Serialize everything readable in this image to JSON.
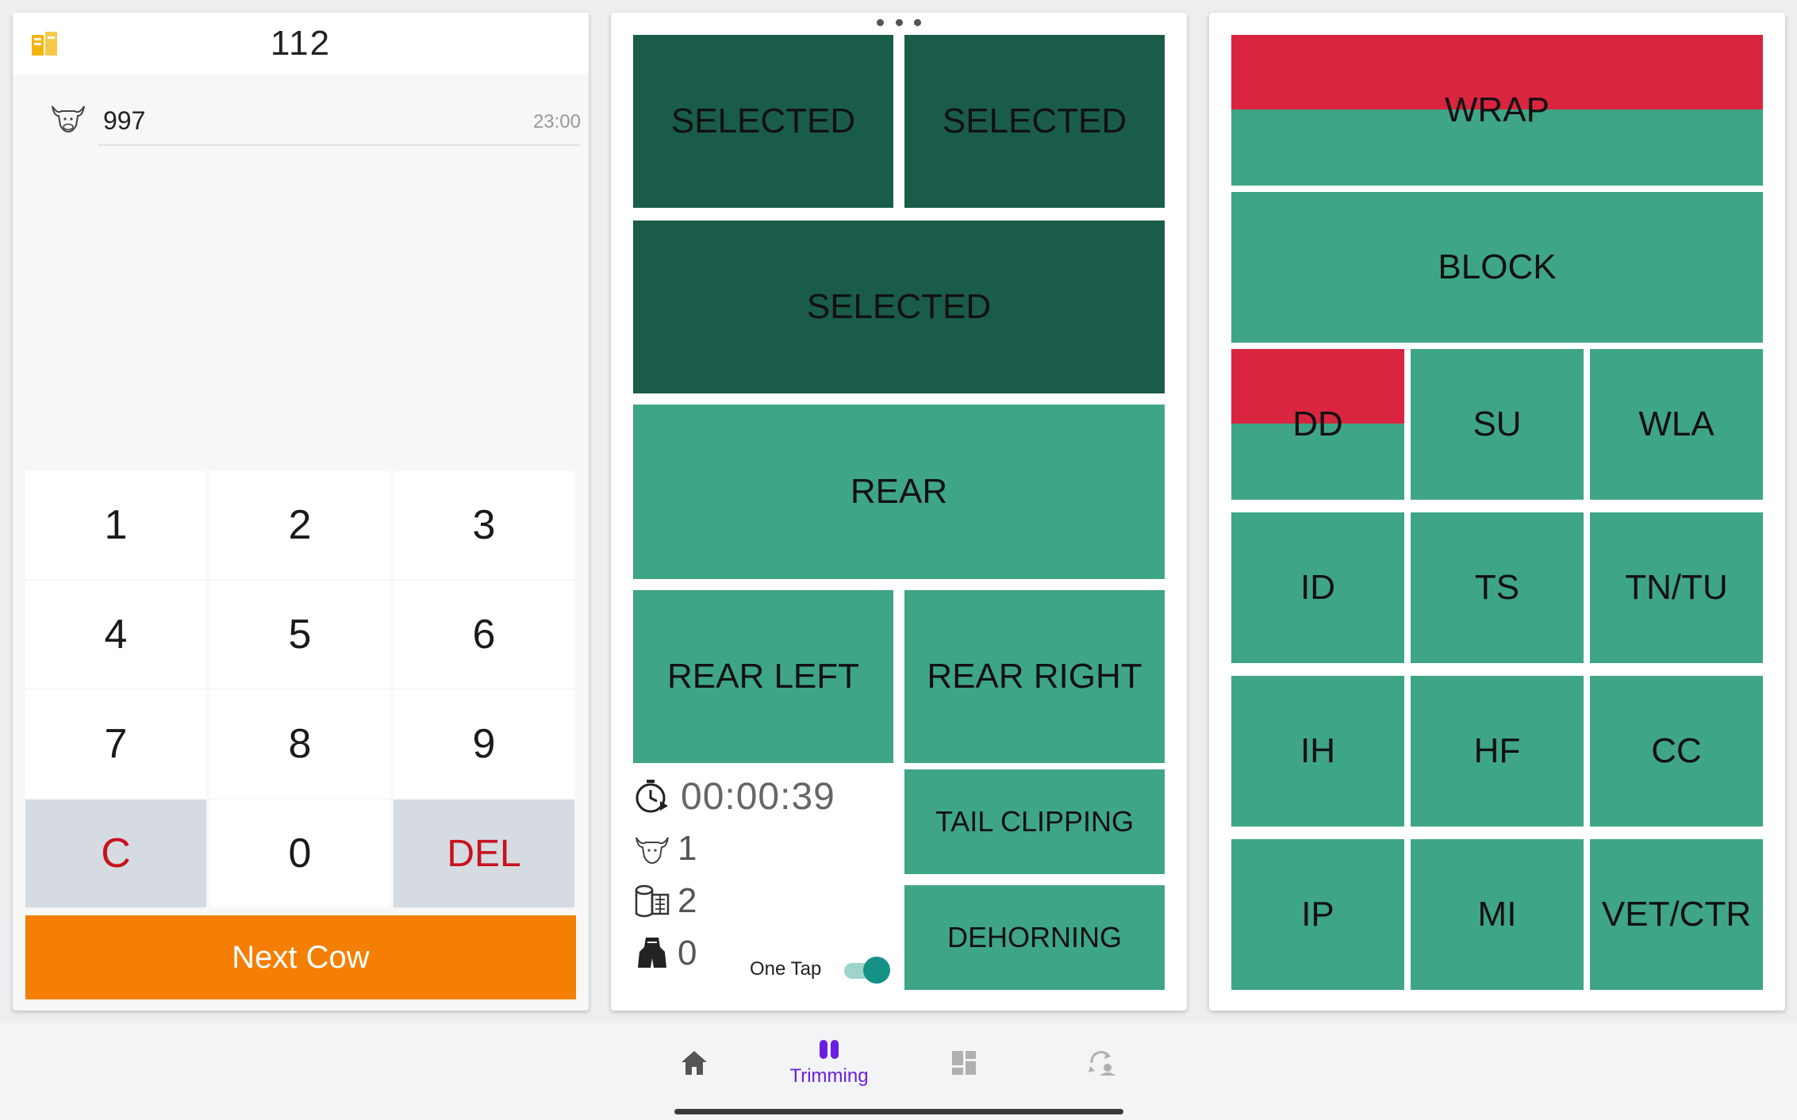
{
  "left_panel": {
    "header_number": "112",
    "cow": {
      "id": "997",
      "time": "23:00"
    },
    "keypad": {
      "keys": [
        "1",
        "2",
        "3",
        "4",
        "5",
        "6",
        "7",
        "8",
        "9"
      ],
      "clear": "C",
      "zero": "0",
      "delete": "DEL"
    },
    "next_cow": "Next Cow"
  },
  "middle_panel": {
    "selected_1": "SELECTED",
    "selected_2": "SELECTED",
    "selected_3": "SELECTED",
    "rear": "REAR",
    "rear_left": "REAR LEFT",
    "rear_right": "REAR RIGHT",
    "tail_clipping": "TAIL CLIPPING",
    "dehorning": "DEHORNING",
    "timer": "00:00:39",
    "cow_count": "1",
    "wrap_count": "2",
    "hoof_count": "0",
    "one_tap_label": "One Tap",
    "one_tap_on": true
  },
  "right_panel": {
    "wrap": "WRAP",
    "block": "BLOCK",
    "codes": [
      "DD",
      "SU",
      "WLA",
      "ID",
      "TS",
      "TN/TU",
      "IH",
      "HF",
      "CC",
      "IP",
      "MI",
      "VET/CTR"
    ]
  },
  "nav": {
    "items": [
      {
        "icon": "home-icon"
      },
      {
        "icon": "trimming-icon",
        "label": "Trimming",
        "active": true
      },
      {
        "icon": "dashboard-icon"
      },
      {
        "icon": "sync-icon"
      }
    ]
  },
  "colors": {
    "tile": "#3fa587",
    "tile_selected": "#1a5c4a",
    "alert": "#d9253f",
    "next_cow": "#f57f05",
    "nav_active": "#6a1fe0"
  }
}
